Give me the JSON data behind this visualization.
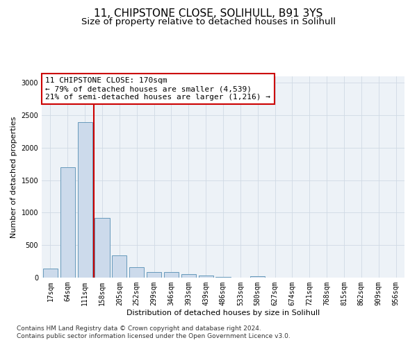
{
  "title1": "11, CHIPSTONE CLOSE, SOLIHULL, B91 3YS",
  "title2": "Size of property relative to detached houses in Solihull",
  "xlabel": "Distribution of detached houses by size in Solihull",
  "ylabel": "Number of detached properties",
  "footnote1": "Contains HM Land Registry data © Crown copyright and database right 2024.",
  "footnote2": "Contains public sector information licensed under the Open Government Licence v3.0.",
  "annotation_line1": "11 CHIPSTONE CLOSE: 170sqm",
  "annotation_line2": "← 79% of detached houses are smaller (4,539)",
  "annotation_line3": "21% of semi-detached houses are larger (1,216) →",
  "bar_labels": [
    "17sqm",
    "64sqm",
    "111sqm",
    "158sqm",
    "205sqm",
    "252sqm",
    "299sqm",
    "346sqm",
    "393sqm",
    "439sqm",
    "486sqm",
    "533sqm",
    "580sqm",
    "627sqm",
    "674sqm",
    "721sqm",
    "768sqm",
    "815sqm",
    "862sqm",
    "909sqm",
    "956sqm"
  ],
  "bar_values": [
    140,
    1700,
    2390,
    920,
    340,
    160,
    90,
    90,
    50,
    30,
    10,
    5,
    20,
    0,
    0,
    0,
    0,
    0,
    0,
    0,
    0
  ],
  "bar_color": "#ccdaeb",
  "bar_edge_color": "#6699bb",
  "bar_edge_width": 0.7,
  "vline_x": 2.5,
  "vline_color": "#cc0000",
  "ylim": [
    0,
    3100
  ],
  "yticks": [
    0,
    500,
    1000,
    1500,
    2000,
    2500,
    3000
  ],
  "grid_color": "#d0dae4",
  "bg_color": "#edf2f7",
  "annotation_box_edgecolor": "#cc0000",
  "annotation_box_facecolor": "#ffffff",
  "title1_fontsize": 11,
  "title2_fontsize": 9.5,
  "annotation_fontsize": 8,
  "axis_label_fontsize": 8,
  "tick_fontsize": 7,
  "ylabel_fontsize": 8,
  "footnote_fontsize": 6.5
}
